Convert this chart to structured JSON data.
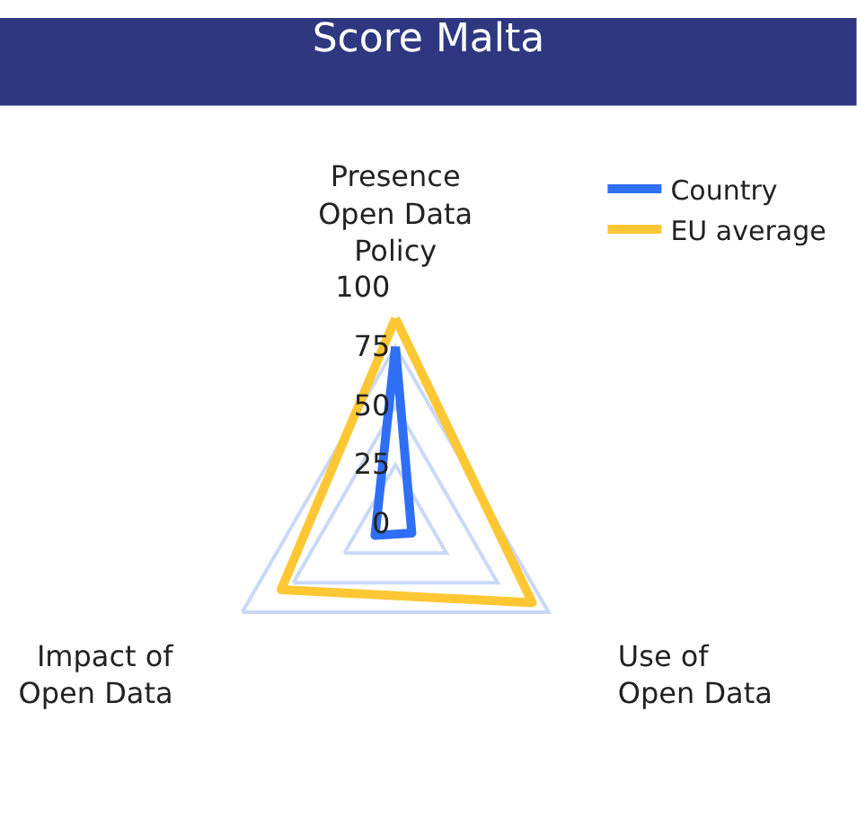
{
  "chart_data": {
    "type": "radar",
    "title": "Score Malta",
    "categories": [
      "Presence Open Data Policy",
      "Use of Open Data",
      "Impact of Open Data"
    ],
    "series": [
      {
        "name": "Country",
        "color": "#2f6ff5",
        "values": [
          75,
          8,
          10
        ]
      },
      {
        "name": "EU average",
        "color": "#ffc733",
        "values": [
          87,
          67,
          56
        ]
      }
    ],
    "ylim": [
      0,
      100
    ],
    "yticks": [
      0,
      25,
      50,
      75,
      100
    ],
    "grid": "y",
    "legend": "top right",
    "marker": "none",
    "line_style": "solid"
  }
}
